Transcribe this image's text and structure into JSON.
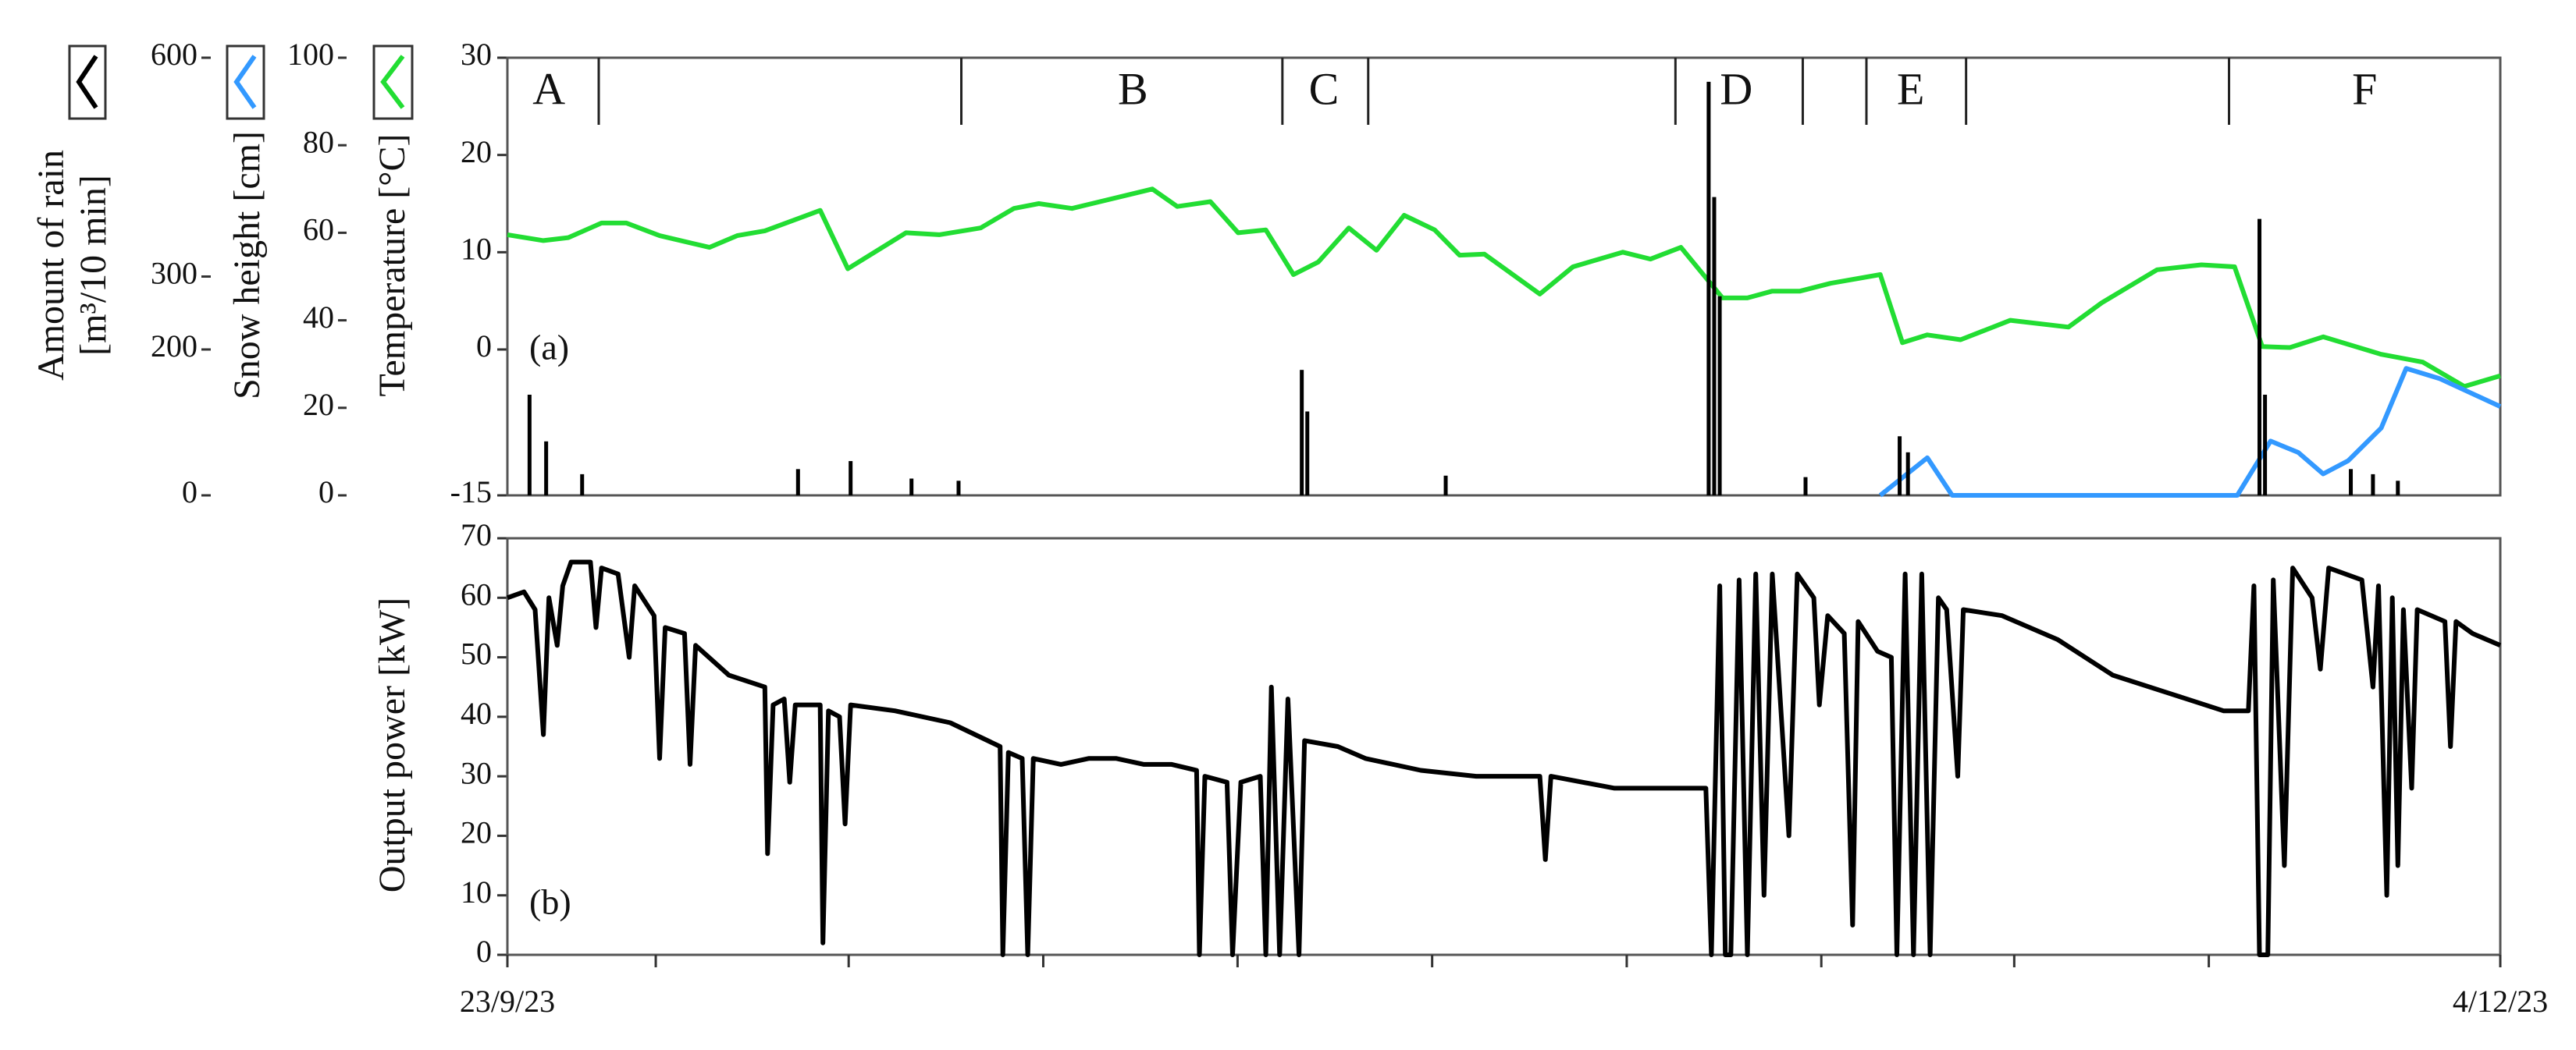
{
  "chart_data": [
    {
      "type": "line",
      "annotation": "(a)",
      "xlim": [
        0,
        72
      ],
      "ylim": [
        -15,
        30
      ],
      "yticks": [
        -15,
        0,
        10,
        20,
        30
      ],
      "ylabel": "Temperature [°C]",
      "y2lim": [
        0,
        100
      ],
      "y2ticks": [
        0,
        20,
        40,
        60,
        80,
        100
      ],
      "y2label": "Snow height [cm]",
      "y3lim": [
        0,
        600
      ],
      "y3ticks": [
        0,
        200,
        300,
        600
      ],
      "y3label": [
        "Amount of rain",
        "[m³/10 min]"
      ],
      "period_boundaries": [
        3.3,
        16.4,
        28.0,
        31.1,
        42.2,
        46.8,
        49.1,
        52.7,
        62.2
      ],
      "period_labels": [
        {
          "text": "A",
          "x": 1.5
        },
        {
          "text": "B",
          "x": 22.6
        },
        {
          "text": "C",
          "x": 29.5
        },
        {
          "text": "D",
          "x": 44.4
        },
        {
          "text": "E",
          "x": 50.7
        },
        {
          "text": "F",
          "x": 67.1
        }
      ],
      "series": [
        {
          "axis": "y",
          "type": "line",
          "color": "#22dd33",
          "x": [
            0,
            1.3,
            2.2,
            3.4,
            4.3,
            5.5,
            7.3,
            8.3,
            9.3,
            11.3,
            12.3,
            14.4,
            15.6,
            17.1,
            18.3,
            19.2,
            20.4,
            23.3,
            24.2,
            25.4,
            26.4,
            27.4,
            28.4,
            29.3,
            30.4,
            31.4,
            32.4,
            33.5,
            34.4,
            35.3,
            37.3,
            38.5,
            40.3,
            41.3,
            42.4,
            43.9,
            44.8,
            45.7,
            46.7,
            47.8,
            49.6,
            50.4,
            51.3,
            52.5,
            54.3,
            56.4,
            57.6,
            59.6,
            61.2,
            62.4,
            63.4,
            64.4,
            65.6,
            67.7,
            69.2,
            70.7,
            72
          ],
          "values": [
            11.8,
            11.2,
            11.5,
            13,
            13,
            11.7,
            10.5,
            11.7,
            12.2,
            14.3,
            8.3,
            12,
            11.8,
            12.5,
            14.5,
            15,
            14.5,
            16.5,
            14.7,
            15.2,
            12,
            12.3,
            7.7,
            9,
            12.5,
            10.2,
            13.8,
            12.3,
            9.7,
            9.8,
            5.7,
            8.5,
            10,
            9.3,
            10.5,
            5.3,
            5.3,
            6,
            6,
            6.8,
            7.7,
            0.7,
            1.5,
            1,
            3,
            2.3,
            4.8,
            8.2,
            8.7,
            8.5,
            0.3,
            0.2,
            1.3,
            -0.5,
            -1.3,
            -3.8,
            -2.7
          ]
        },
        {
          "axis": "y2",
          "type": "line",
          "color": "#3399ff",
          "x": [
            49.6,
            51.3,
            52.2,
            62.5,
            63.7,
            64.7,
            65.6,
            66.5,
            67.7,
            68.6,
            69.8,
            72
          ],
          "values": [
            0,
            8.6,
            0,
            0,
            12.4,
            9.8,
            4.9,
            7.9,
            15.4,
            29,
            26.7,
            20.3
          ]
        },
        {
          "axis": "y3",
          "type": "bar",
          "color": "#000000",
          "x": [
            0.8,
            1.4,
            2.7,
            10.5,
            12.4,
            14.6,
            16.3,
            28.7,
            28.9,
            33.9,
            43.4,
            43.6,
            43.8,
            46.9,
            50.3,
            50.6,
            63.3,
            63.5,
            66.6,
            67.4,
            68.3
          ],
          "values": [
            138,
            74,
            29,
            36,
            47,
            23,
            20,
            172,
            115,
            27,
            567,
            409,
            273,
            25,
            81,
            59,
            379,
            138,
            36,
            29,
            20
          ]
        }
      ]
    },
    {
      "type": "line",
      "annotation": "(b)",
      "xlim": [
        0,
        72
      ],
      "xticks": [
        {
          "value": 0,
          "label": "23/9/23"
        },
        {
          "value": 72,
          "label": "4/12/23"
        }
      ],
      "xminorticks": [
        5.36,
        12.33,
        19.36,
        26.38,
        33.41,
        40.44,
        47.47,
        54.44,
        61.47
      ],
      "ylim": [
        0,
        70
      ],
      "yticks": [
        0,
        10,
        20,
        30,
        40,
        50,
        60,
        70
      ],
      "ylabel": "Output power [kW]",
      "series": [
        {
          "axis": "y",
          "type": "line",
          "color": "#000000",
          "x": [
            0,
            0.6,
            1,
            1.3,
            1.5,
            1.8,
            2,
            2.3,
            3,
            3.2,
            3.4,
            4,
            4.4,
            4.6,
            5.3,
            5.5,
            5.7,
            6.4,
            6.6,
            6.8,
            8,
            9.3,
            9.4,
            9.6,
            10,
            10.2,
            10.4,
            11.3,
            11.4,
            11.6,
            12,
            12.2,
            12.4,
            14,
            16,
            17.8,
            17.9,
            18.1,
            18.6,
            18.8,
            19,
            20,
            21,
            22,
            23,
            24,
            24.9,
            25,
            25.2,
            26,
            26.2,
            26.5,
            27.2,
            27.4,
            27.6,
            27.9,
            28.2,
            28.6,
            28.8,
            30,
            31,
            33,
            35,
            37.3,
            37.5,
            37.7,
            40,
            42,
            43.3,
            43.5,
            43.8,
            44,
            44.2,
            44.5,
            44.8,
            45.1,
            45.4,
            45.7,
            46.3,
            46.6,
            47.2,
            47.4,
            47.7,
            48.3,
            48.6,
            48.8,
            49.5,
            50,
            50.2,
            50.5,
            50.8,
            51.1,
            51.4,
            51.7,
            52,
            52.4,
            52.6,
            54,
            56,
            58,
            60,
            62,
            62.9,
            63.1,
            63.3,
            63.6,
            63.8,
            64.2,
            64.5,
            65.2,
            65.5,
            65.8,
            67,
            67.4,
            67.6,
            67.9,
            68.1,
            68.3,
            68.5,
            68.8,
            69,
            70,
            70.2,
            70.4,
            71,
            72
          ],
          "values": [
            60,
            61,
            58,
            37,
            60,
            52,
            62,
            66,
            66,
            55,
            65,
            64,
            50,
            62,
            57,
            33,
            55,
            54,
            32,
            52,
            47,
            45,
            17,
            42,
            43,
            29,
            42,
            42,
            2,
            41,
            40,
            22,
            42,
            41,
            39,
            35,
            0,
            34,
            33,
            0,
            33,
            32,
            33,
            33,
            32,
            32,
            31,
            0,
            30,
            29,
            0,
            29,
            30,
            0,
            45,
            0,
            43,
            0,
            36,
            35,
            33,
            31,
            30,
            30,
            16,
            30,
            28,
            28,
            28,
            0,
            62,
            0,
            0,
            63,
            0,
            64,
            10,
            64,
            20,
            64,
            60,
            42,
            57,
            54,
            5,
            56,
            51,
            50,
            0,
            64,
            0,
            64,
            0,
            60,
            58,
            30,
            58,
            57,
            53,
            47,
            44,
            41,
            41,
            62,
            0,
            0,
            63,
            15,
            65,
            60,
            48,
            65,
            63,
            45,
            62,
            10,
            60,
            15,
            58,
            28,
            58,
            56,
            35,
            56,
            54,
            52
          ]
        }
      ]
    }
  ]
}
